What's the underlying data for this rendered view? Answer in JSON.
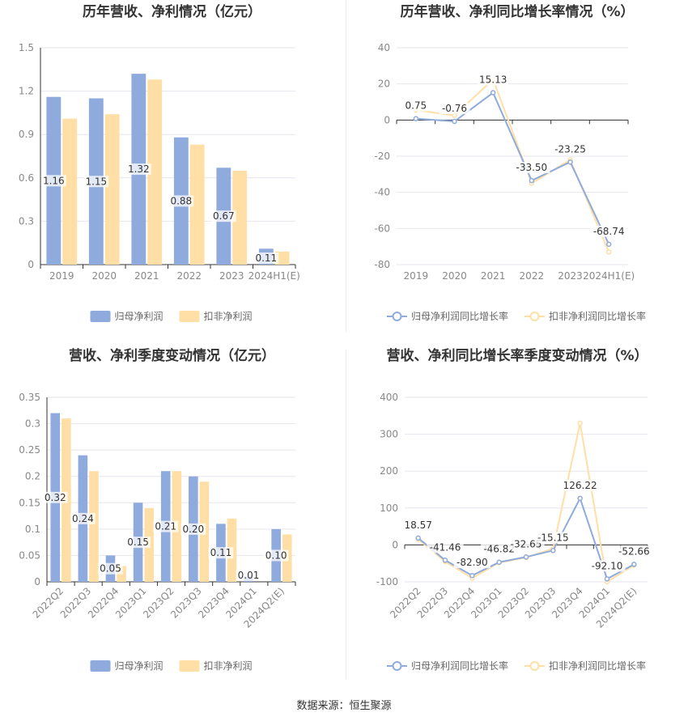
{
  "colors": {
    "primary": "#8faadc",
    "secondary": "#ffdfa5",
    "grid": "#e6e6ee",
    "axis": "#333333",
    "tick": "#888888",
    "label": "#333333"
  },
  "source_text": "数据来源：恒生聚源",
  "chart_data": [
    {
      "type": "bar",
      "title": "历年营收、净利情况（亿元）",
      "categories": [
        "2019",
        "2020",
        "2021",
        "2022",
        "2023",
        "2024H1(E)"
      ],
      "ylim": [
        0,
        1.5
      ],
      "yticks": [
        "0",
        "0.3",
        "0.6",
        "0.9",
        "1.2",
        "1.5"
      ],
      "series": [
        {
          "name": "归母净利润",
          "values": [
            1.16,
            1.15,
            1.32,
            0.88,
            0.67,
            0.11
          ],
          "labels": [
            "1.16",
            "1.15",
            "1.32",
            "0.88",
            "0.67",
            "0.11"
          ]
        },
        {
          "name": "扣非净利润",
          "values": [
            1.01,
            1.04,
            1.28,
            0.83,
            0.65,
            0.09
          ]
        }
      ],
      "legend": "bottom-center",
      "grid": true
    },
    {
      "type": "line",
      "title": "历年营收、净利同比增长率情况（%）",
      "categories": [
        "2019",
        "2020",
        "2021",
        "2022",
        "2023",
        "2024H1(E)"
      ],
      "ylim": [
        -80,
        40
      ],
      "yticks": [
        "-80",
        "-60",
        "-40",
        "-20",
        "0",
        "20",
        "40"
      ],
      "series": [
        {
          "name": "归母净利润同比增长率",
          "values": [
            0.75,
            -0.76,
            15.13,
            -33.5,
            -23.25,
            -68.74
          ],
          "labels": [
            "0.75",
            "-0.76",
            "15.13",
            "-33.50",
            "-23.25",
            "-68.74"
          ]
        },
        {
          "name": "扣非净利润同比增长率",
          "values": [
            5.5,
            2.5,
            22.5,
            -35,
            -22,
            -73
          ]
        }
      ],
      "legend": "bottom-center",
      "grid": true
    },
    {
      "type": "bar",
      "title": "营收、净利季度变动情况（亿元）",
      "categories": [
        "2022Q2",
        "2022Q3",
        "2022Q4",
        "2023Q1",
        "2023Q2",
        "2023Q3",
        "2023Q4",
        "2024Q1",
        "2024Q2(E)"
      ],
      "ylim": [
        0,
        0.35
      ],
      "yticks": [
        "0",
        "0.05",
        "0.1",
        "0.15",
        "0.2",
        "0.25",
        "0.3",
        "0.35"
      ],
      "series": [
        {
          "name": "归母净利润",
          "values": [
            0.32,
            0.24,
            0.05,
            0.15,
            0.21,
            0.2,
            0.11,
            0.01,
            0.1
          ],
          "labels": [
            "0.32",
            "0.24",
            "0.05",
            "0.15",
            "0.21",
            "0.20",
            "0.11",
            "0.01",
            "0.10"
          ]
        },
        {
          "name": "扣非净利润",
          "values": [
            0.31,
            0.21,
            0.03,
            0.14,
            0.21,
            0.19,
            0.12,
            0.0,
            0.09
          ]
        }
      ],
      "legend": "bottom-center",
      "grid": true
    },
    {
      "type": "line",
      "title": "营收、净利同比增长率季度变动情况（%）",
      "categories": [
        "2022Q2",
        "2022Q3",
        "2022Q4",
        "2023Q1",
        "2023Q2",
        "2023Q3",
        "2023Q4",
        "2024Q1",
        "2024Q2(E)"
      ],
      "ylim": [
        -100,
        400
      ],
      "yticks": [
        "-100",
        "0",
        "100",
        "200",
        "300",
        "400"
      ],
      "series": [
        {
          "name": "归母净利润同比增长率",
          "values": [
            18.57,
            -41.46,
            -82.9,
            -46.82,
            -32.65,
            -15.15,
            126.22,
            -92.1,
            -52.66
          ],
          "labels": [
            "18.57",
            "-41.46",
            "-82.90",
            "-46.82",
            "-32.65",
            "-15.15",
            "126.22",
            "-92.10",
            "-52.66"
          ]
        },
        {
          "name": "扣非净利润同比增长率",
          "values": [
            15,
            -45,
            -90,
            -48,
            -34,
            -10,
            330,
            -100,
            -55
          ]
        }
      ],
      "legend": "bottom-center",
      "grid": true
    }
  ]
}
